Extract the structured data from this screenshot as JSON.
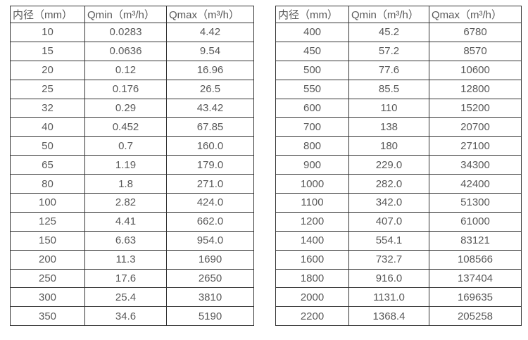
{
  "colors": {
    "table_border": "#333333",
    "table_text": "#595959",
    "background": "#ffffff"
  },
  "tables": [
    {
      "name": "flow-spec-small-diameters",
      "headers": [
        "内径（mm）",
        "Qmin（m³/h）",
        "Qmax（m³/h）"
      ],
      "rows": [
        [
          "10",
          "0.0283",
          "4.42"
        ],
        [
          "15",
          "0.0636",
          "9.54"
        ],
        [
          "20",
          "0.12",
          "16.96"
        ],
        [
          "25",
          "0.176",
          "26.5"
        ],
        [
          "32",
          "0.29",
          "43.42"
        ],
        [
          "40",
          "0.452",
          "67.85"
        ],
        [
          "50",
          "0.7",
          "160.0"
        ],
        [
          "65",
          "1.19",
          "179.0"
        ],
        [
          "80",
          "1.8",
          "271.0"
        ],
        [
          "100",
          "2.82",
          "424.0"
        ],
        [
          "125",
          "4.41",
          "662.0"
        ],
        [
          "150",
          "6.63",
          "954.0"
        ],
        [
          "200",
          "11.3",
          "1690"
        ],
        [
          "250",
          "17.6",
          "2650"
        ],
        [
          "300",
          "25.4",
          "3810"
        ],
        [
          "350",
          "34.6",
          "5190"
        ]
      ]
    },
    {
      "name": "flow-spec-large-diameters",
      "headers": [
        "内径（mm）",
        "Qmin（m³/h）",
        "Qmax（m³/h）"
      ],
      "rows": [
        [
          "400",
          "45.2",
          "6780"
        ],
        [
          "450",
          "57.2",
          "8570"
        ],
        [
          "500",
          "77.6",
          "10600"
        ],
        [
          "550",
          "85.5",
          "12800"
        ],
        [
          "600",
          "110",
          "15200"
        ],
        [
          "700",
          "138",
          "20700"
        ],
        [
          "800",
          "180",
          "27100"
        ],
        [
          "900",
          "229.0",
          "34300"
        ],
        [
          "1000",
          "282.0",
          "42400"
        ],
        [
          "1100",
          "342.0",
          "51300"
        ],
        [
          "1200",
          "407.0",
          "61000"
        ],
        [
          "1400",
          "554.1",
          "83121"
        ],
        [
          "1600",
          "732.7",
          "108566"
        ],
        [
          "1800",
          "916.0",
          "137404"
        ],
        [
          "2000",
          "1131.0",
          "169635"
        ],
        [
          "2200",
          "1368.4",
          "205258"
        ]
      ]
    }
  ]
}
